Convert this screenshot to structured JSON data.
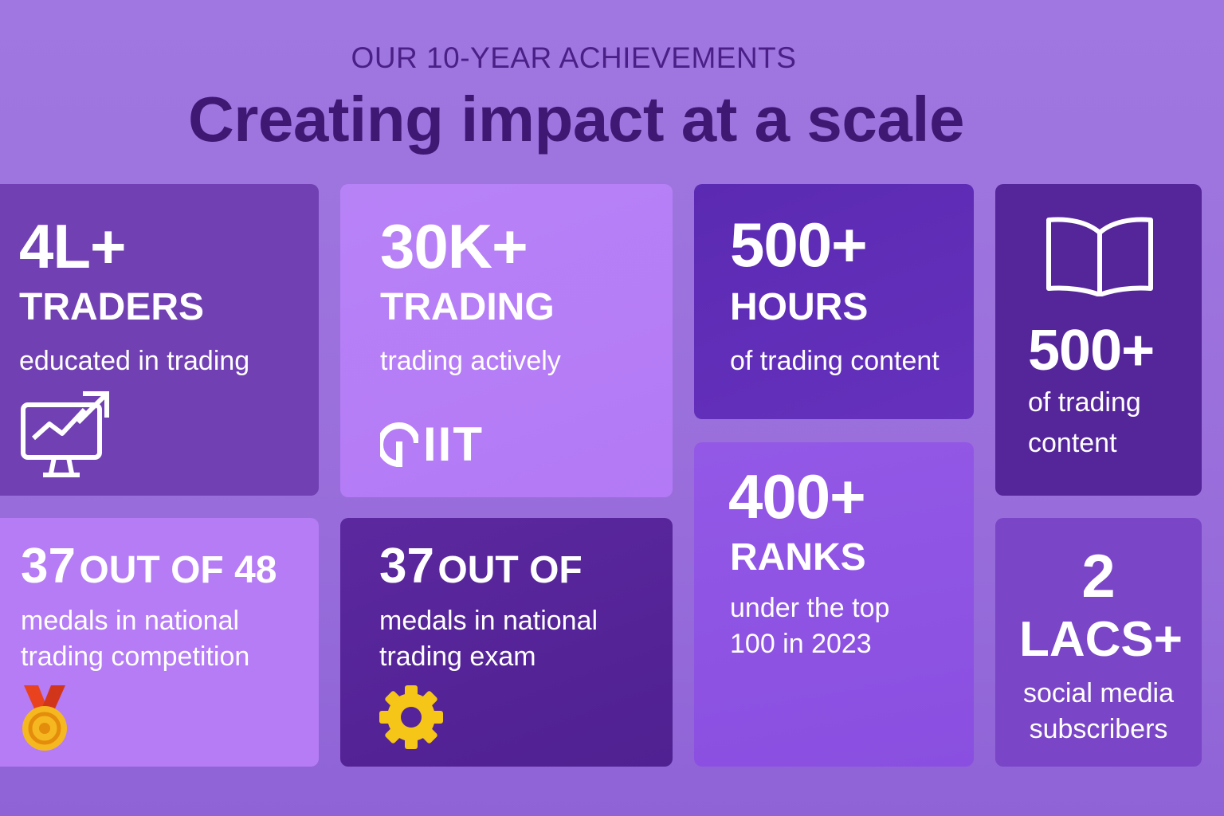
{
  "header": {
    "eyebrow": "OUR 10-YEAR ACHIEVEMENTS",
    "title": "Creating impact at a scale"
  },
  "cards": {
    "traders": {
      "value": "4L+",
      "label": "TRADERS",
      "caption": "educated in trading",
      "icon": "chart-monitor-icon"
    },
    "trading": {
      "value": "30K+",
      "label": "TRADING",
      "caption": "trading actively",
      "logo": "IIT",
      "icon": "iit-logo"
    },
    "hours": {
      "value": "500+",
      "label": "HOURS",
      "caption": "of trading content"
    },
    "content": {
      "value": "500+",
      "caption_line1": "of trading",
      "caption_line2": "content",
      "icon": "open-book-icon"
    },
    "competition": {
      "value": "37",
      "outof": "OUT OF 48",
      "caption_line1": "medals in national",
      "caption_line2": "trading competition",
      "icon": "medal-icon"
    },
    "exam": {
      "value": "37",
      "outof": "OUT OF",
      "caption_line1": "medals in national",
      "caption_line2": "trading exam",
      "icon": "gear-icon"
    },
    "ranks": {
      "value": "400+",
      "label": "RANKS",
      "caption_line1": "under the top",
      "caption_line2": "100 in 2023"
    },
    "social": {
      "value": "2",
      "label": "LACS+",
      "caption_line1": "social media",
      "caption_line2": "subscribers"
    }
  },
  "colors": {
    "background": "#9a6fdc",
    "headline": "#3f1874",
    "medal": "#f5b820",
    "gear": "#f5c518"
  }
}
